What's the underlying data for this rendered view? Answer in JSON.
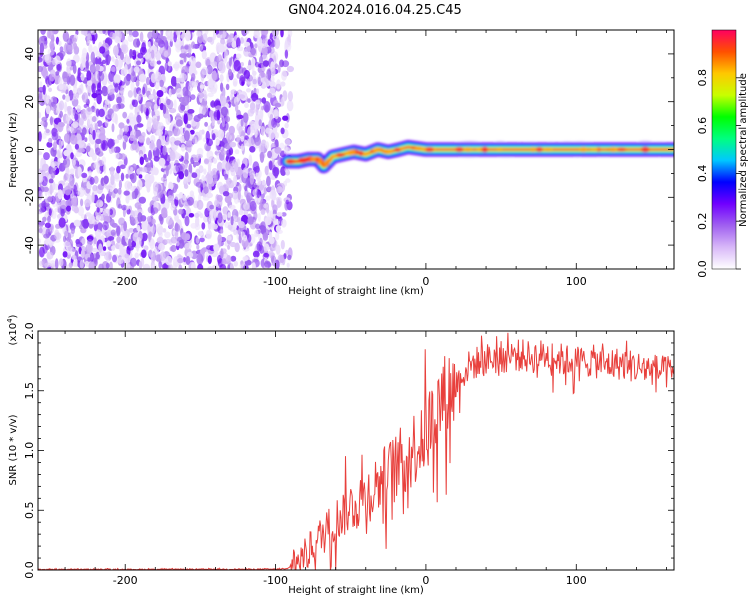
{
  "title": "GN04.2024.016.04.25.C45",
  "chart_data": [
    {
      "type": "heatmap",
      "xlabel": "Height of straight line (km)",
      "ylabel": "Frequency (Hz)",
      "xlim": [
        -258,
        165
      ],
      "ylim": [
        -50,
        50
      ],
      "x_ticks": [
        -200,
        -100,
        0,
        100
      ],
      "y_ticks": [
        -40,
        -20,
        0,
        20,
        40
      ],
      "noise_region_x": [
        -258,
        -90
      ],
      "signal_ridge": {
        "x": [
          -92,
          -85,
          -78,
          -72,
          -68,
          -62,
          -55,
          -48,
          -40,
          -32,
          -25,
          -18,
          -12,
          0,
          14,
          30,
          60,
          80,
          100,
          120,
          140,
          165
        ],
        "frequency": [
          -5,
          -5,
          -4,
          -4,
          -7,
          -3,
          -2,
          -1,
          -2,
          0,
          -1,
          0,
          1,
          0,
          0,
          0,
          0,
          0,
          0,
          0,
          0,
          0
        ]
      },
      "colorbar": {
        "label": "Normalized spectral amplitude",
        "range": [
          0,
          1
        ],
        "ticks": [
          0.0,
          0.2,
          0.4,
          0.6,
          0.8
        ],
        "tick_labels": [
          "0.0",
          "0.2",
          "0.4",
          "0.6",
          "0.8"
        ],
        "colormap": [
          "#ffffff",
          "#d8b8f8",
          "#a060f0",
          "#7000ff",
          "#0000ff",
          "#00c8ff",
          "#00ff80",
          "#00ff00",
          "#c8ff00",
          "#ffc800",
          "#ff5000",
          "#ff0060"
        ]
      }
    },
    {
      "type": "line",
      "xlabel": "Height of straight line (km)",
      "ylabel": "SNR (10 * v/v)",
      "y_multiplier": "(x10",
      "y_multiplier_exp": "4",
      "y_multiplier_close": ")",
      "xlim": [
        -258,
        165
      ],
      "ylim": [
        0,
        2.0
      ],
      "x_ticks": [
        -200,
        -100,
        0,
        100
      ],
      "y_ticks": [
        0.0,
        0.5,
        1.0,
        1.5,
        2.0
      ],
      "y_tick_labels": [
        "0.0",
        "0.5",
        "1.0",
        "1.5",
        "2.0"
      ],
      "color": "#e8403c",
      "series": [
        {
          "x": [
            -258,
            -200,
            -150,
            -100,
            -92,
            -85,
            -78,
            -70,
            -62,
            -55,
            -48,
            -40,
            -32,
            -25,
            -18,
            -12,
            -5,
            0,
            5,
            10,
            15,
            20,
            25,
            30,
            40,
            50,
            60,
            70,
            80,
            90,
            100,
            110,
            120,
            130,
            140,
            150,
            160,
            165
          ],
          "values": [
            0.005,
            0.005,
            0.006,
            0.007,
            0.01,
            0.07,
            0.15,
            0.28,
            0.38,
            0.48,
            0.55,
            0.62,
            0.72,
            0.8,
            0.88,
            0.95,
            1.08,
            1.12,
            1.3,
            1.4,
            1.48,
            1.55,
            1.65,
            1.72,
            1.76,
            1.78,
            1.8,
            1.78,
            1.8,
            1.76,
            1.74,
            1.75,
            1.72,
            1.73,
            1.7,
            1.68,
            1.65,
            1.62
          ]
        }
      ]
    }
  ]
}
